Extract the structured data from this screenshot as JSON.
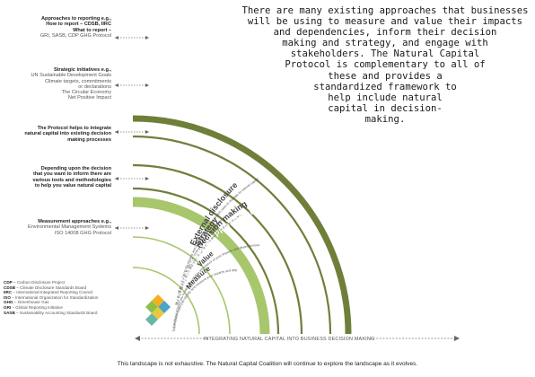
{
  "callouts": [
    {
      "id": "reporting",
      "lines": [
        "Approaches to reporting e.g.,",
        "How to report – CDSB, IIRC",
        "What to report –",
        "GRI, SASB, CDP GHG Protocol"
      ]
    },
    {
      "id": "strategic",
      "lines": [
        "Strategic initiatives e.g.,",
        "UN Sustainable Development Goals",
        "Climate targets, commitments",
        "or declarations",
        "The Circular Economy",
        "Net Positive Impact"
      ]
    },
    {
      "id": "protocol",
      "lines": [
        "The Protocol helps to integrate",
        "natural capital into existing decision",
        "making processes"
      ]
    },
    {
      "id": "depending",
      "lines": [
        "Depending upon the decision",
        "that you want to inform there are",
        "various tools and methodologies",
        "to help you value natural capital"
      ]
    },
    {
      "id": "measurement",
      "lines": [
        "Measurement approaches e.g.,",
        "Environmental Management Systems",
        "ISO 14008 GHG Protocol"
      ]
    }
  ],
  "arcs": {
    "external": {
      "title": "External disclosure",
      "desc": "By reporting or disclosing the impacts and dependencies the organization uses to manage its natural capital"
    },
    "strategy": {
      "title": "Strategy",
      "desc": "The outcome can inform high level strategy and policy development"
    },
    "decision": {
      "title": "Decision making",
      "desc": "By understanding values and integrating them into decision making processes"
    },
    "protocol": {
      "title": "THE NATURAL CAPITAL PROTOCOL"
    },
    "value": {
      "title": "Value",
      "desc": "The Protocol helps you to value the relative importance of your impacts and dependencies"
    },
    "measure": {
      "title": "Measure",
      "desc": "The Protocol helps you identify and measure your impacts and dependencies on natural capital"
    }
  },
  "bottom_axis_label": "INTEGRATING NATURAL CAPITAL INTO BUSINESS DECISION MAKING",
  "legend": [
    {
      "abbr": "CDP",
      "text": "– Carbon Disclosure Project"
    },
    {
      "abbr": "CDSB",
      "text": "– Climate Disclosure Standards Board"
    },
    {
      "abbr": "IIRC",
      "text": "– International Integrated Reporting Council"
    },
    {
      "abbr": "ISO",
      "text": "– International Organization for Standardization"
    },
    {
      "abbr": "GHG",
      "text": "– Greenhouse Gas"
    },
    {
      "abbr": "GRI",
      "text": "– Global Reporting Initiative"
    },
    {
      "abbr": "SASB",
      "text": "– Sustainability Accounting Standards Board"
    }
  ],
  "footer": "This landscape is not exhaustive. The Natural Capital Coalition will continue to explore the landscape as it evolves.",
  "overlay_lines": [
    "There are many existing approaches that businesses",
    "will be using to measure and value their impacts",
    "and dependencies, inform their decision",
    "making and strategy, and engage with",
    "stakeholders. The Natural Capital",
    "Protocol is complementary to all of",
    "these and provides a",
    "standardized framework to",
    "help include natural",
    "capital in decision-",
    "making."
  ],
  "colors": {
    "dark_green": "#6f7f3a",
    "light_green": "#a8c66c",
    "arc_text": "#444444"
  }
}
